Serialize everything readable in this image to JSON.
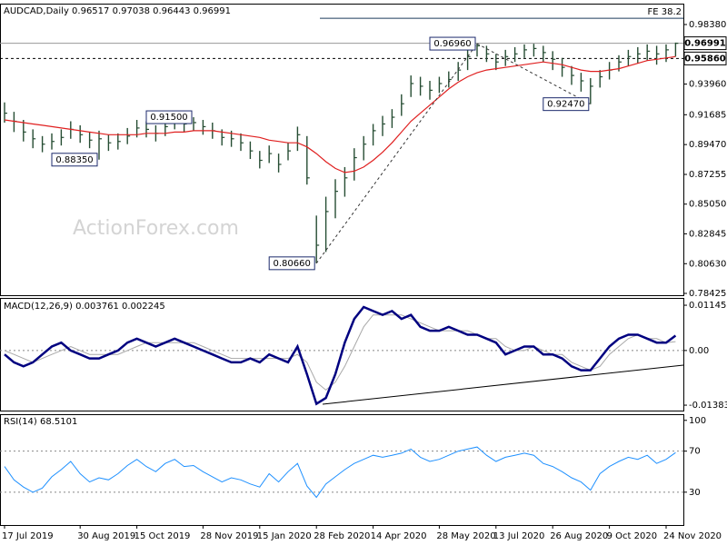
{
  "chart_data": [
    {
      "type": "ohlc",
      "title": "AUDCAD,Daily 0.96517 0.97038 0.96443 0.96991",
      "watermark": "ActionForex.com",
      "categories": [
        "17 Jul 2019",
        null,
        null,
        null,
        null,
        null,
        null,
        null,
        "30 Aug 2019",
        null,
        null,
        null,
        null,
        null,
        "15 Oct 2019",
        null,
        null,
        null,
        null,
        null,
        null,
        "28 Nov 2019",
        null,
        null,
        null,
        null,
        null,
        "15 Jan 2020",
        null,
        null,
        null,
        null,
        null,
        "28 Feb 2020",
        null,
        null,
        null,
        null,
        null,
        "14 Apr 2020",
        null,
        null,
        null,
        null,
        null,
        null,
        "28 May 2020",
        null,
        null,
        null,
        null,
        null,
        "13 Jul 2020",
        null,
        null,
        null,
        null,
        null,
        "26 Aug 2020",
        null,
        null,
        null,
        null,
        null,
        "9 Oct 2020",
        null,
        null,
        null,
        null,
        null,
        "24 Nov 2020",
        null
      ],
      "color": "#264d33",
      "high": [
        0.926,
        0.919,
        0.913,
        0.906,
        0.901,
        0.903,
        0.906,
        0.912,
        0.909,
        0.904,
        0.905,
        0.902,
        0.903,
        0.907,
        0.913,
        0.912,
        0.909,
        0.913,
        0.914,
        0.9145,
        0.915,
        0.913,
        0.911,
        0.906,
        0.905,
        0.903,
        0.897,
        0.89,
        0.894,
        0.888,
        0.896,
        0.908,
        0.901,
        0.842,
        0.856,
        0.869,
        0.878,
        0.892,
        0.901,
        0.91,
        0.916,
        0.921,
        0.932,
        0.946,
        0.945,
        0.942,
        0.945,
        0.949,
        0.956,
        0.965,
        0.9696,
        0.968,
        0.962,
        0.965,
        0.967,
        0.969,
        0.9695,
        0.968,
        0.964,
        0.959,
        0.953,
        0.948,
        0.944,
        0.95,
        0.956,
        0.961,
        0.965,
        0.967,
        0.969,
        0.968,
        0.969,
        0.9704
      ],
      "low": [
        0.911,
        0.904,
        0.897,
        0.892,
        0.889,
        0.891,
        0.894,
        0.899,
        0.896,
        0.892,
        0.8835,
        0.89,
        0.891,
        0.895,
        0.9,
        0.9,
        0.897,
        0.901,
        0.906,
        0.904,
        0.905,
        0.902,
        0.899,
        0.894,
        0.893,
        0.89,
        0.884,
        0.877,
        0.881,
        0.874,
        0.883,
        0.89,
        0.865,
        0.8066,
        0.815,
        0.84,
        0.856,
        0.868,
        0.883,
        0.894,
        0.901,
        0.907,
        0.916,
        0.93,
        0.931,
        0.928,
        0.933,
        0.937,
        0.942,
        0.95,
        0.96,
        0.956,
        0.95,
        0.953,
        0.956,
        0.959,
        0.96,
        0.956,
        0.95,
        0.945,
        0.939,
        0.934,
        0.9247,
        0.937,
        0.943,
        0.949,
        0.953,
        0.955,
        0.957,
        0.954,
        0.956,
        0.96
      ],
      "close": [
        0.918,
        0.912,
        0.904,
        0.899,
        0.895,
        0.897,
        0.9,
        0.906,
        0.902,
        0.898,
        0.899,
        0.896,
        0.897,
        0.901,
        0.907,
        0.906,
        0.903,
        0.908,
        0.912,
        0.91,
        0.911,
        0.908,
        0.905,
        0.9,
        0.899,
        0.896,
        0.89,
        0.883,
        0.888,
        0.88,
        0.89,
        0.902,
        0.87,
        0.82,
        0.845,
        0.86,
        0.87,
        0.885,
        0.895,
        0.905,
        0.91,
        0.915,
        0.925,
        0.94,
        0.938,
        0.935,
        0.94,
        0.943,
        0.95,
        0.96,
        0.968,
        0.962,
        0.956,
        0.96,
        0.962,
        0.965,
        0.966,
        0.963,
        0.958,
        0.952,
        0.946,
        0.942,
        0.938,
        0.945,
        0.95,
        0.956,
        0.96,
        0.962,
        0.964,
        0.962,
        0.965,
        0.9699
      ],
      "ma": {
        "color": "#e02020",
        "values": [
          0.913,
          0.912,
          0.911,
          0.91,
          0.909,
          0.908,
          0.907,
          0.906,
          0.905,
          0.904,
          0.903,
          0.902,
          0.902,
          0.902,
          0.902,
          0.903,
          0.903,
          0.903,
          0.904,
          0.904,
          0.905,
          0.905,
          0.905,
          0.904,
          0.903,
          0.902,
          0.901,
          0.9,
          0.898,
          0.897,
          0.896,
          0.896,
          0.893,
          0.888,
          0.882,
          0.877,
          0.874,
          0.875,
          0.878,
          0.883,
          0.889,
          0.896,
          0.904,
          0.912,
          0.918,
          0.924,
          0.93,
          0.936,
          0.941,
          0.945,
          0.948,
          0.95,
          0.951,
          0.952,
          0.953,
          0.954,
          0.955,
          0.956,
          0.955,
          0.954,
          0.952,
          0.95,
          0.949,
          0.949,
          0.95,
          0.951,
          0.953,
          0.955,
          0.957,
          0.958,
          0.959,
          0.96
        ]
      },
      "ylim": [
        0.7829,
        0.9993
      ],
      "yticks": [
        {
          "value": 0.9838,
          "label": "0.98380"
        },
        {
          "value": 0.9396,
          "label": "0.93960"
        },
        0.91685,
        {
          "value": 0.8947,
          "label": "0.89470"
        },
        0.87255,
        {
          "value": 0.8505,
          "label": "0.85050"
        },
        0.82845,
        {
          "value": 0.8063,
          "label": "0.80630"
        },
        0.78425
      ],
      "levels": [
        {
          "value": 0.9884,
          "label": "FE 38.2",
          "style": "fe"
        },
        {
          "value": 0.96991,
          "label": "0.96991",
          "style": "solid"
        },
        {
          "value": 0.9586,
          "label": "0.95860",
          "style": "dotted"
        }
      ],
      "annotations": [
        {
          "index": 50,
          "value": 0.9696,
          "label": "0.96960"
        },
        {
          "index": 62,
          "value": 0.9247,
          "label": "0.92470"
        },
        {
          "index": 20,
          "value": 0.915,
          "label": "0.91500"
        },
        {
          "index": 10,
          "value": 0.8835,
          "label": "0.88350"
        },
        {
          "index": 33,
          "value": 0.8066,
          "label": "0.80660"
        }
      ]
    },
    {
      "type": "macd",
      "title": "MACD(12,26,9) 0.003761 0.002245",
      "series": [
        {
          "color": "#000080",
          "width": 2.5,
          "values": [
            -0.001,
            -0.003,
            -0.004,
            -0.003,
            -0.001,
            0.001,
            0.002,
            0.0,
            -0.001,
            -0.002,
            -0.002,
            -0.001,
            0.0,
            0.002,
            0.003,
            0.002,
            0.001,
            0.002,
            0.003,
            0.002,
            0.001,
            0.0,
            -0.001,
            -0.002,
            -0.003,
            -0.003,
            -0.002,
            -0.003,
            -0.001,
            -0.002,
            -0.003,
            0.001,
            -0.006,
            -0.0135,
            -0.012,
            -0.006,
            0.002,
            0.008,
            0.011,
            0.01,
            0.009,
            0.01,
            0.008,
            0.009,
            0.006,
            0.005,
            0.005,
            0.006,
            0.005,
            0.004,
            0.004,
            0.003,
            0.002,
            -0.001,
            0.0,
            0.001,
            0.001,
            -0.001,
            -0.001,
            -0.002,
            -0.004,
            -0.005,
            -0.005,
            -0.002,
            0.001,
            0.003,
            0.004,
            0.004,
            0.003,
            0.002,
            0.002,
            0.003761
          ]
        },
        {
          "color": "#a8a8a8",
          "width": 1,
          "values": [
            0.0,
            -0.001,
            -0.002,
            -0.003,
            -0.002,
            -0.001,
            0.0,
            0.001,
            0.0,
            -0.001,
            -0.001,
            -0.001,
            -0.001,
            0.0,
            0.001,
            0.002,
            0.002,
            0.002,
            0.002,
            0.002,
            0.002,
            0.001,
            0.0,
            -0.001,
            -0.002,
            -0.002,
            -0.002,
            -0.002,
            -0.002,
            -0.002,
            -0.002,
            -0.001,
            -0.003,
            -0.008,
            -0.01,
            -0.008,
            -0.004,
            0.001,
            0.006,
            0.009,
            0.009,
            0.009,
            0.009,
            0.008,
            0.007,
            0.006,
            0.005,
            0.005,
            0.005,
            0.005,
            0.004,
            0.003,
            0.003,
            0.001,
            0.0,
            0.0,
            0.001,
            0.0,
            -0.001,
            -0.001,
            -0.003,
            -0.004,
            -0.005,
            -0.004,
            -0.001,
            0.001,
            0.003,
            0.004,
            0.003,
            0.003,
            0.002,
            0.002245
          ]
        }
      ],
      "ylim": [
        -0.0152,
        0.0133
      ],
      "yticks": [
        0.011452,
        {
          "value": 0,
          "label": "0.00"
        },
        -0.013831
      ],
      "levels": [
        0
      ]
    },
    {
      "type": "rsi",
      "title": "RSI(14) 68.5101",
      "color": "#1e90ff",
      "values": [
        55,
        42,
        35,
        30,
        34,
        45,
        52,
        60,
        48,
        40,
        44,
        42,
        48,
        56,
        62,
        55,
        50,
        58,
        62,
        55,
        56,
        50,
        45,
        40,
        44,
        42,
        38,
        35,
        48,
        40,
        50,
        58,
        36,
        25,
        38,
        45,
        52,
        58,
        62,
        66,
        64,
        66,
        68,
        72,
        64,
        60,
        62,
        66,
        70,
        72,
        74,
        66,
        60,
        64,
        66,
        68,
        66,
        58,
        55,
        50,
        44,
        40,
        32,
        48,
        55,
        60,
        64,
        62,
        66,
        58,
        62,
        68.5101
      ],
      "ylim": [
        -2,
        106
      ],
      "yticks": [
        100,
        70,
        30
      ],
      "levels": [
        70,
        30
      ]
    }
  ]
}
